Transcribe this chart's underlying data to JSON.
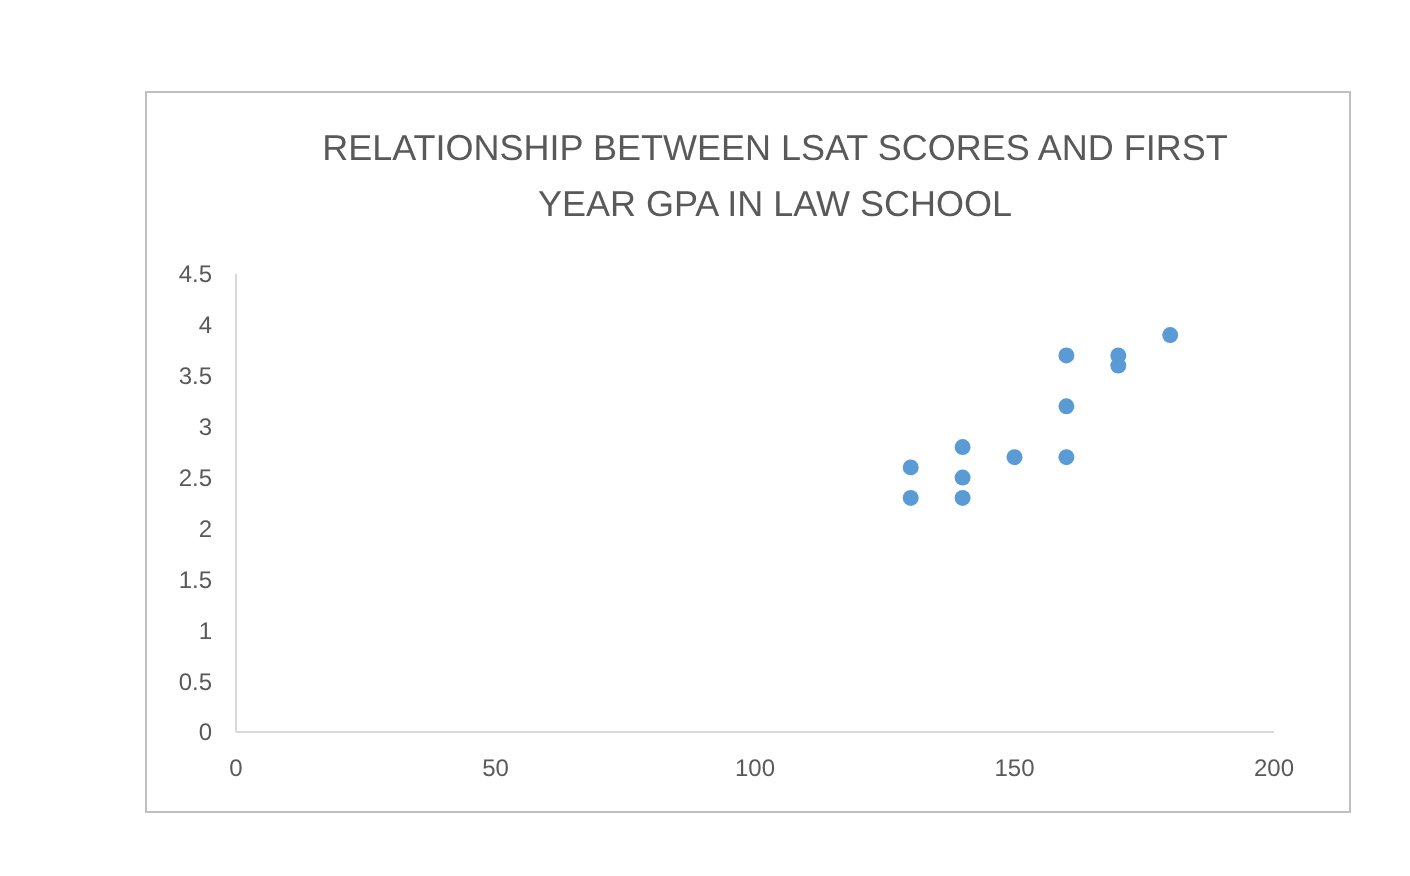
{
  "chart_data": {
    "type": "scatter",
    "title": "RELATIONSHIP BETWEEN LSAT SCORES AND FIRST YEAR GPA IN LAW SCHOOL",
    "x": [
      130,
      130,
      140,
      140,
      140,
      150,
      160,
      160,
      160,
      170,
      170,
      180
    ],
    "values": [
      2.6,
      2.3,
      2.8,
      2.5,
      2.3,
      2.7,
      3.7,
      3.2,
      2.7,
      3.7,
      3.6,
      3.9
    ],
    "color": "#5b9bd5",
    "marker": "circle",
    "xlim": [
      0,
      200
    ],
    "xticks": [
      0,
      50,
      100,
      150,
      200
    ],
    "ylim": [
      0,
      4.5
    ],
    "yticks": [
      0,
      0.5,
      1,
      1.5,
      2,
      2.5,
      3,
      3.5,
      4,
      4.5
    ],
    "grid": false
  }
}
